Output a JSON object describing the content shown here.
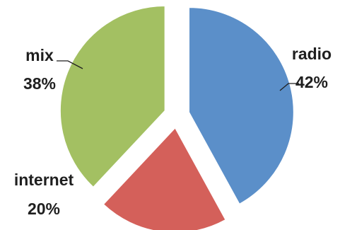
{
  "chart_data": {
    "type": "pie",
    "title": "",
    "slices": [
      {
        "label": "radio",
        "value": 42,
        "value_label": "42%",
        "color": "#5b8fc9"
      },
      {
        "label": "internet",
        "value": 20,
        "value_label": "20%",
        "color": "#d4605a"
      },
      {
        "label": "mix",
        "value": 38,
        "value_label": "38%",
        "color": "#a3c062"
      }
    ],
    "start_angle": "12 o'clock",
    "direction": "clockwise",
    "exploded": true,
    "legend": "none",
    "data_labels": "outside with leader lines"
  }
}
